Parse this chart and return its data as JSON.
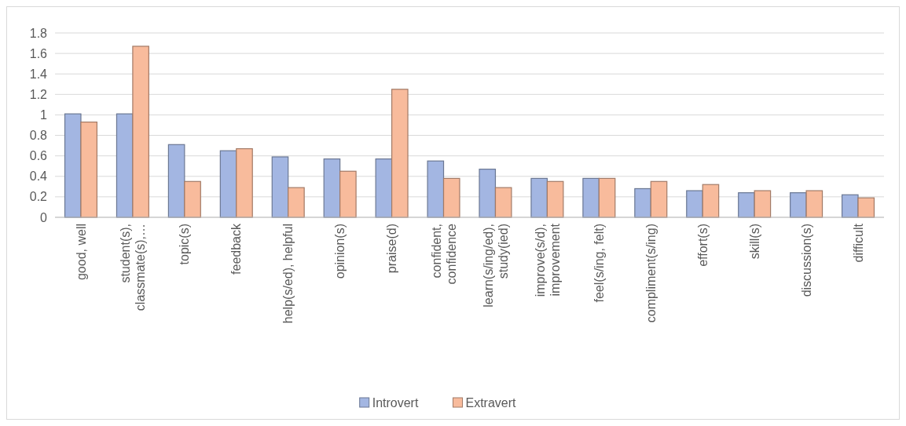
{
  "chart_data": {
    "type": "bar",
    "categories": [
      "good, well",
      "student(s), classmate(s),…",
      "topic(s)",
      "feedback",
      "help(s/ed), helpful",
      "opinion(s)",
      "praise(d)",
      "confident, confidence",
      "learn(s/ing/ed), study(ied)",
      "improve(s/d), improvement",
      "feel(s/ing, felt)",
      "compliment(s/ing)",
      "effort(s)",
      "skill(s)",
      "discussion(s)",
      "difficult"
    ],
    "series": [
      {
        "name": "Introvert",
        "color": "#a3b6e2",
        "values": [
          1.01,
          1.01,
          0.71,
          0.65,
          0.59,
          0.57,
          0.57,
          0.55,
          0.47,
          0.38,
          0.38,
          0.28,
          0.26,
          0.24,
          0.24,
          0.22
        ]
      },
      {
        "name": "Extravert",
        "color": "#f8bb9c",
        "values": [
          0.93,
          1.67,
          0.35,
          0.67,
          0.29,
          0.45,
          1.25,
          0.38,
          0.29,
          0.35,
          0.38,
          0.35,
          0.32,
          0.26,
          0.26,
          0.19
        ]
      }
    ],
    "ylim": [
      0,
      1.8
    ],
    "yticks": [
      0,
      0.2,
      0.4,
      0.6,
      0.8,
      1,
      1.2,
      1.4,
      1.6,
      1.8
    ],
    "grid": "y",
    "legend": "bottom"
  }
}
